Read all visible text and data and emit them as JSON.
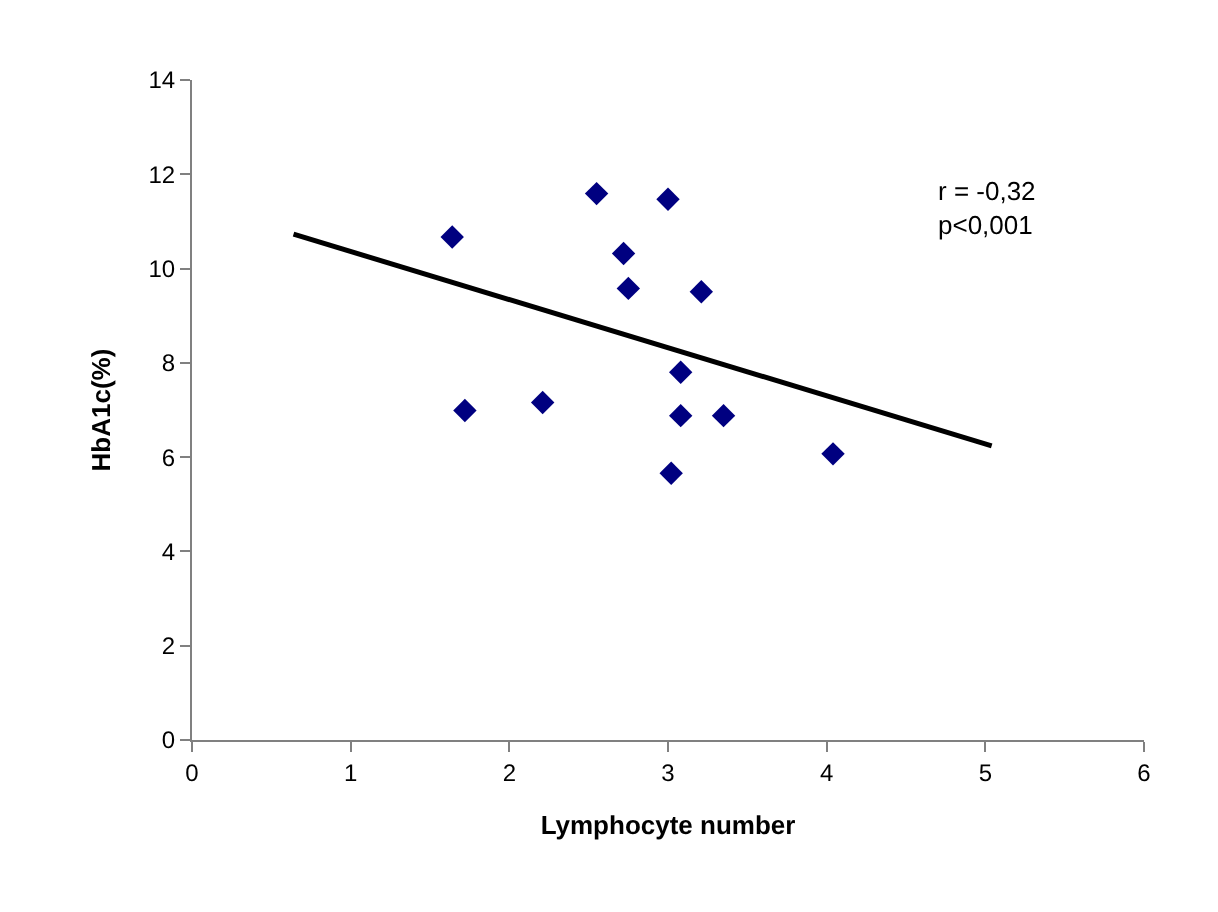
{
  "chart_data": {
    "type": "scatter",
    "xlabel": "Lymphocyte number",
    "ylabel": "HbA1c(%)",
    "series": [
      {
        "color": "#000080",
        "marker": "diamond",
        "x": [
          1.64,
          1.72,
          2.21,
          2.55,
          2.72,
          2.75,
          3.0,
          3.21,
          3.08,
          3.08,
          3.35,
          3.02,
          4.04
        ],
        "values": [
          10.67,
          6.99,
          7.16,
          11.59,
          10.32,
          9.58,
          11.47,
          9.51,
          7.8,
          6.88,
          6.88,
          5.66,
          6.07
        ]
      },
      {
        "type": "line",
        "color": "#000000",
        "marker": "none",
        "x": [
          0.64,
          5.04
        ],
        "values": [
          10.73,
          6.24
        ]
      }
    ],
    "xlim": [
      0,
      6
    ],
    "xticks": [
      0,
      1,
      2,
      3,
      4,
      5,
      6
    ],
    "ylim": [
      0,
      14
    ],
    "yticks": [
      0,
      2,
      4,
      6,
      8,
      10,
      12,
      14
    ],
    "annotations": [
      "r = -0,32\np<0,001"
    ]
  }
}
